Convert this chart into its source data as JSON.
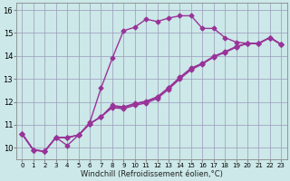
{
  "xlabel": "Windchill (Refroidissement éolien,°C)",
  "xlim": [
    -0.5,
    23.5
  ],
  "ylim": [
    9.5,
    16.3
  ],
  "xticks": [
    0,
    1,
    2,
    3,
    4,
    5,
    6,
    7,
    8,
    9,
    10,
    11,
    12,
    13,
    14,
    15,
    16,
    17,
    18,
    19,
    20,
    21,
    22,
    23
  ],
  "yticks": [
    10,
    11,
    12,
    13,
    14,
    15,
    16
  ],
  "background_color": "#cce8e8",
  "grid_color": "#9999bb",
  "line_color": "#993399",
  "line_width": 1.0,
  "marker": "D",
  "marker_size": 2.5,
  "lines": [
    [
      10.6,
      9.9,
      9.85,
      10.45,
      10.1,
      10.55,
      11.1,
      12.6,
      13.9,
      15.1,
      15.25,
      15.6,
      15.5,
      15.65,
      15.75,
      15.75,
      15.2,
      15.2,
      14.8,
      14.6,
      14.55,
      14.55,
      14.8,
      14.5
    ],
    [
      10.6,
      9.9,
      9.85,
      10.45,
      10.45,
      10.55,
      11.05,
      11.35,
      11.75,
      11.7,
      11.85,
      11.95,
      12.15,
      12.55,
      13.0,
      13.4,
      13.65,
      13.95,
      14.15,
      14.38,
      14.55,
      14.55,
      14.8,
      14.5
    ],
    [
      10.6,
      9.9,
      9.85,
      10.45,
      10.45,
      10.55,
      11.05,
      11.35,
      11.8,
      11.75,
      11.9,
      12.0,
      12.2,
      12.6,
      13.05,
      13.45,
      13.67,
      13.97,
      14.17,
      14.4,
      14.55,
      14.55,
      14.8,
      14.5
    ],
    [
      10.6,
      9.9,
      9.85,
      10.45,
      10.45,
      10.55,
      11.05,
      11.35,
      11.85,
      11.78,
      11.93,
      12.03,
      12.22,
      12.62,
      13.07,
      13.47,
      13.68,
      13.98,
      14.18,
      14.41,
      14.55,
      14.55,
      14.8,
      14.5
    ]
  ]
}
